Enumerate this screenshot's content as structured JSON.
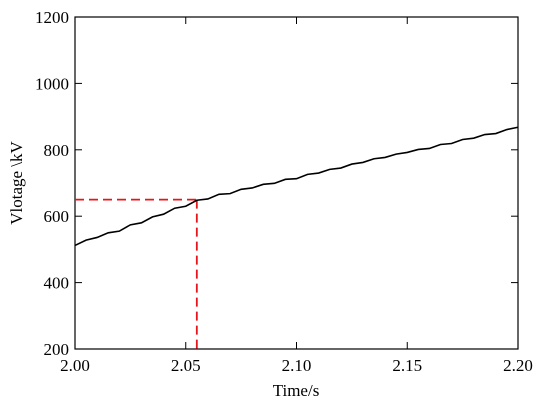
{
  "chart_data": {
    "type": "line",
    "x_label": "Time/s",
    "y_label": "Vlotage \\kV",
    "x": [
      2.0,
      2.005,
      2.01,
      2.015,
      2.02,
      2.025,
      2.03,
      2.035,
      2.04,
      2.045,
      2.05,
      2.055,
      2.06,
      2.065,
      2.07,
      2.075,
      2.08,
      2.085,
      2.09,
      2.095,
      2.1,
      2.105,
      2.11,
      2.115,
      2.12,
      2.125,
      2.13,
      2.135,
      2.14,
      2.145,
      2.15,
      2.155,
      2.16,
      2.165,
      2.17,
      2.175,
      2.18,
      2.185,
      2.19,
      2.195,
      2.2
    ],
    "series": [
      {
        "color": "#000000",
        "values": [
          512,
          528,
          536,
          550,
          555,
          574,
          580,
          598,
          606,
          624,
          630,
          648,
          652,
          666,
          668,
          681,
          685,
          696,
          699,
          711,
          713,
          726,
          730,
          741,
          745,
          757,
          762,
          773,
          777,
          787,
          792,
          801,
          804,
          816,
          819,
          831,
          835,
          846,
          849,
          861,
          868
        ]
      }
    ],
    "reference": {
      "x": 2.055,
      "y": 650,
      "color": "#e8141c"
    },
    "xlim": [
      2.0,
      2.2
    ],
    "xticks": [
      {
        "value": 2.0,
        "label": "2.00"
      },
      {
        "value": 2.05,
        "label": "2.05"
      },
      {
        "value": 2.1,
        "label": "2.10"
      },
      {
        "value": 2.15,
        "label": "2.15"
      },
      {
        "value": 2.2,
        "label": "2.20"
      }
    ],
    "ylim": [
      200,
      1200
    ],
    "yticks": [
      200,
      400,
      600,
      800,
      1000,
      1200
    ],
    "grid": false
  }
}
